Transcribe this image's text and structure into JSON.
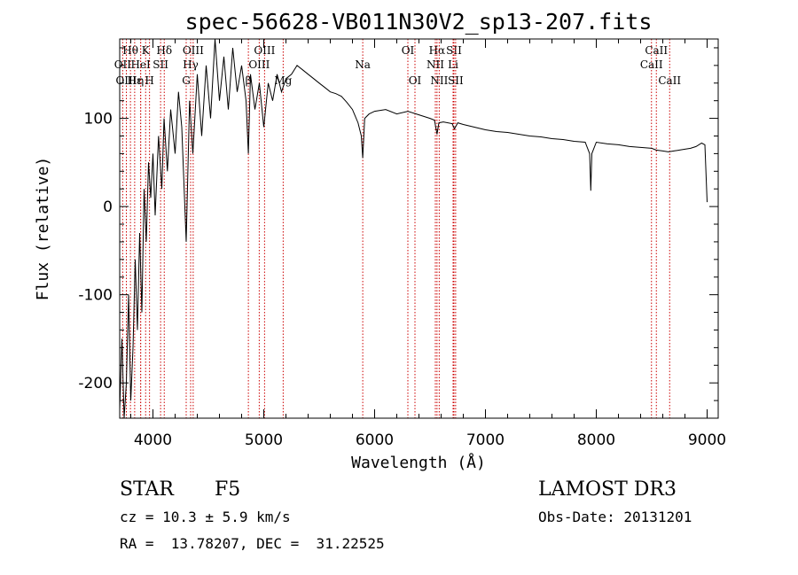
{
  "chart_data": {
    "type": "line",
    "title": "spec-56628-VB011N30V2_sp13-207.fits",
    "xlabel": "Wavelength (Å)",
    "ylabel": "Flux (relative)",
    "xlim": [
      3700,
      9100
    ],
    "ylim": [
      -240,
      190
    ],
    "xticks": [
      4000,
      5000,
      6000,
      7000,
      8000,
      9000
    ],
    "yticks": [
      -200,
      -100,
      0,
      100
    ],
    "series": [
      {
        "name": "flux",
        "x": [
          3700,
          3720,
          3740,
          3760,
          3780,
          3800,
          3820,
          3840,
          3860,
          3880,
          3900,
          3920,
          3940,
          3960,
          3980,
          4000,
          4020,
          4050,
          4080,
          4100,
          4130,
          4160,
          4200,
          4230,
          4260,
          4300,
          4330,
          4360,
          4400,
          4440,
          4480,
          4520,
          4560,
          4600,
          4640,
          4680,
          4720,
          4760,
          4800,
          4840,
          4861,
          4880,
          4920,
          4960,
          5000,
          5040,
          5080,
          5120,
          5160,
          5200,
          5250,
          5300,
          5350,
          5400,
          5450,
          5500,
          5550,
          5600,
          5650,
          5700,
          5750,
          5800,
          5850,
          5880,
          5893,
          5910,
          5950,
          6000,
          6100,
          6200,
          6300,
          6400,
          6500,
          6540,
          6563,
          6580,
          6620,
          6700,
          6720,
          6750,
          6800,
          6900,
          7000,
          7100,
          7200,
          7300,
          7400,
          7500,
          7600,
          7700,
          7800,
          7900,
          7940,
          7950,
          7960,
          8000,
          8100,
          8200,
          8300,
          8400,
          8500,
          8540,
          8600,
          8650,
          8700,
          8750,
          8800,
          8850,
          8900,
          8950,
          8980,
          9000
        ],
        "y": [
          -230,
          -150,
          -240,
          -200,
          -100,
          -220,
          -160,
          -60,
          -140,
          -30,
          -120,
          20,
          -40,
          50,
          10,
          60,
          -10,
          80,
          20,
          100,
          40,
          110,
          60,
          130,
          90,
          -40,
          120,
          60,
          150,
          80,
          160,
          100,
          190,
          120,
          170,
          110,
          180,
          130,
          160,
          120,
          60,
          150,
          110,
          140,
          90,
          140,
          120,
          150,
          130,
          145,
          150,
          160,
          155,
          150,
          145,
          140,
          135,
          130,
          128,
          125,
          118,
          110,
          95,
          80,
          55,
          100,
          105,
          108,
          110,
          105,
          108,
          104,
          100,
          98,
          82,
          95,
          96,
          94,
          88,
          95,
          93,
          90,
          87,
          85,
          84,
          82,
          80,
          79,
          77,
          76,
          74,
          73,
          60,
          18,
          60,
          73,
          71,
          70,
          68,
          67,
          66,
          64,
          63,
          62,
          63,
          64,
          65,
          66,
          68,
          72,
          70,
          5
        ]
      }
    ],
    "lines": [
      {
        "label": "Hθ",
        "x": 3797,
        "row": 1
      },
      {
        "label": "OII",
        "x": 3727,
        "row": 2
      },
      {
        "label": "OIII",
        "x": 3760,
        "row": 3
      },
      {
        "label": "Hε",
        "x": 3835,
        "row": 3
      },
      {
        "label": "K",
        "x": 3934,
        "row": 1
      },
      {
        "label": "HeI",
        "x": 3889,
        "row": 2
      },
      {
        "label": "η",
        "x": 3889,
        "row": 3
      },
      {
        "label": "SII",
        "x": 4069,
        "row": 2
      },
      {
        "label": "H",
        "x": 3969,
        "row": 3
      },
      {
        "label": "Hδ",
        "x": 4102,
        "row": 1
      },
      {
        "label": "OIII",
        "x": 4363,
        "row": 1
      },
      {
        "label": "Hγ",
        "x": 4340,
        "row": 2
      },
      {
        "label": "G",
        "x": 4300,
        "row": 3
      },
      {
        "label": "OIII",
        "x": 5007,
        "row": 1
      },
      {
        "label": "OIII",
        "x": 4959,
        "row": 2
      },
      {
        "label": "β",
        "x": 4861,
        "row": 3
      },
      {
        "label": "Mg",
        "x": 5175,
        "row": 3
      },
      {
        "label": "Na",
        "x": 5893,
        "row": 2
      },
      {
        "label": "OI",
        "x": 6300,
        "row": 1
      },
      {
        "label": "OI",
        "x": 6364,
        "row": 3
      },
      {
        "label": "Hα",
        "x": 6563,
        "row": 1
      },
      {
        "label": "SII",
        "x": 6716,
        "row": 1
      },
      {
        "label": "NII",
        "x": 6548,
        "row": 2
      },
      {
        "label": "Li",
        "x": 6708,
        "row": 2
      },
      {
        "label": "NII",
        "x": 6583,
        "row": 3
      },
      {
        "label": "SII",
        "x": 6731,
        "row": 3
      },
      {
        "label": "CaII",
        "x": 8542,
        "row": 1
      },
      {
        "label": "CaII",
        "x": 8498,
        "row": 2
      },
      {
        "label": "CaII",
        "x": 8662,
        "row": 3
      }
    ]
  },
  "info": {
    "class": "STAR",
    "subclass": "F5",
    "survey": "LAMOST DR3",
    "cz": "cz = 10.3 ± 5.9 km/s",
    "obs_date": "Obs-Date: 20131201",
    "radec": "RA =  13.78207, DEC =  31.22525"
  }
}
